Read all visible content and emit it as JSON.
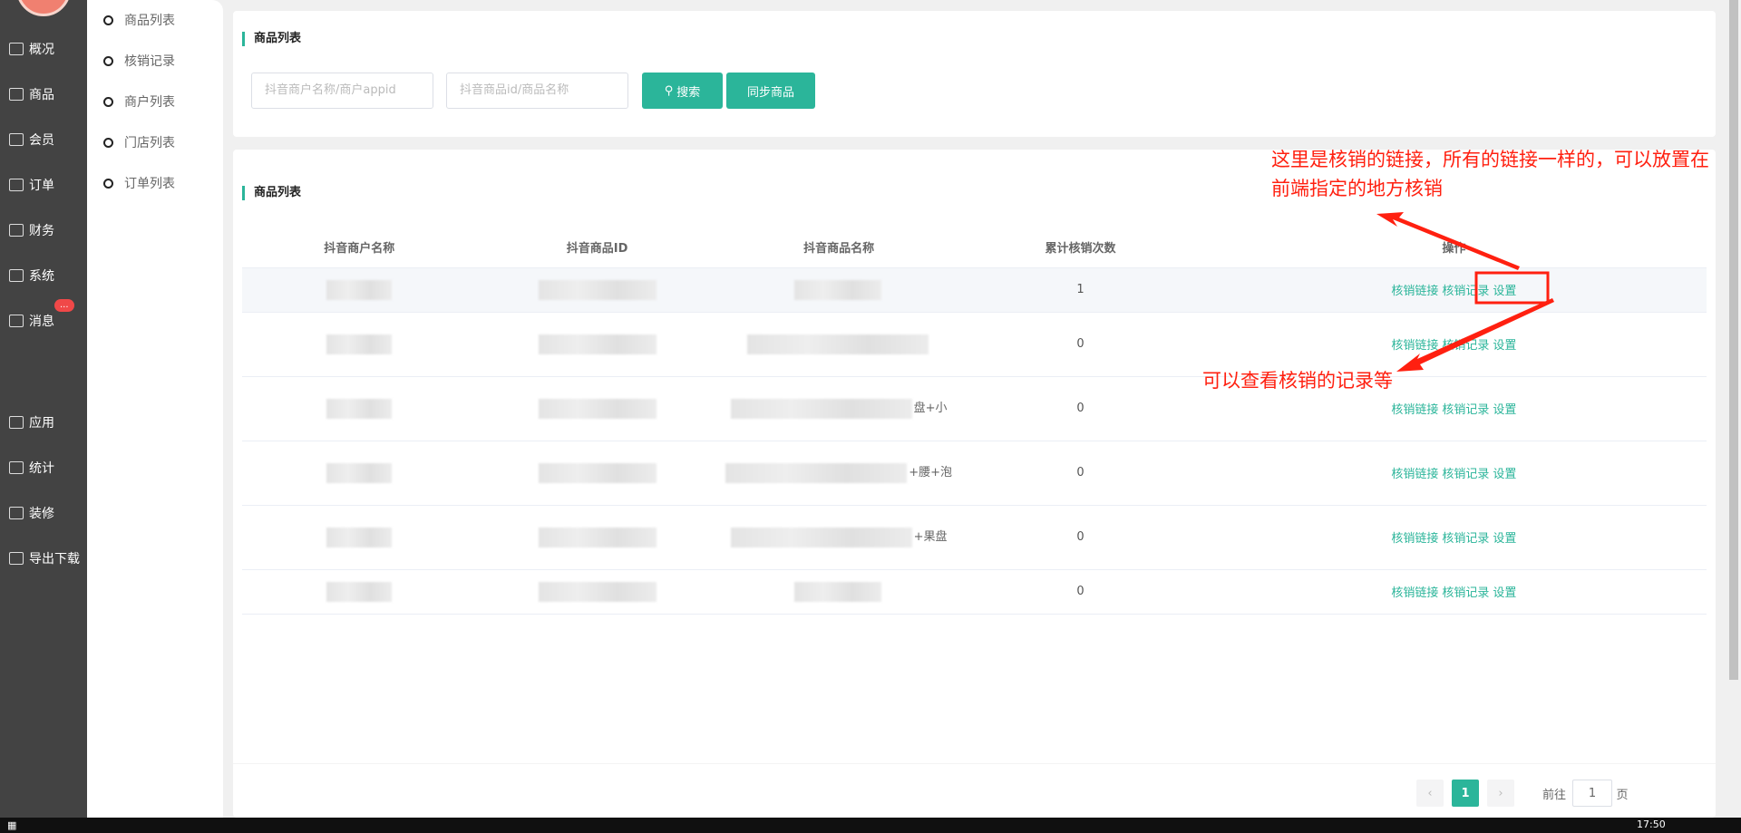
{
  "sidebar": {
    "items": [
      {
        "label": "概况",
        "icon": "chart-icon"
      },
      {
        "label": "商品",
        "icon": "bag-icon"
      },
      {
        "label": "会员",
        "icon": "users-icon"
      },
      {
        "label": "订单",
        "icon": "cart-icon"
      },
      {
        "label": "财务",
        "icon": "yen-icon"
      },
      {
        "label": "系统",
        "icon": "gear-icon"
      },
      {
        "label": "消息",
        "icon": "chat-icon"
      },
      {
        "label": "应用",
        "icon": "apps-icon"
      },
      {
        "label": "统计",
        "icon": "bar-chart-icon"
      },
      {
        "label": "装修",
        "icon": "paint-roller-icon"
      },
      {
        "label": "导出下载",
        "icon": "download-icon"
      }
    ],
    "badge": "..."
  },
  "submenu": {
    "items": [
      "商品列表",
      "核销记录",
      "商户列表",
      "门店列表",
      "订单列表"
    ]
  },
  "search": {
    "title": "商品列表",
    "merchant_placeholder": "抖音商户名称/商户appid",
    "product_placeholder": "抖音商品id/商品名称",
    "search_label": "搜索",
    "sync_label": "同步商品"
  },
  "table": {
    "title": "商品列表",
    "headers": [
      "抖音商户名称",
      "抖音商品ID",
      "抖音商品名称",
      "累计核销次数",
      "操作"
    ],
    "rows": [
      {
        "count": "1",
        "frag": ""
      },
      {
        "count": "0",
        "frag": ""
      },
      {
        "count": "0",
        "frag": "盘+小"
      },
      {
        "count": "0",
        "frag": "+腰+泡"
      },
      {
        "count": "0",
        "frag": "+果盘"
      },
      {
        "count": "0",
        "frag": ""
      }
    ],
    "actions": [
      "核销链接",
      "核销记录",
      "设置"
    ]
  },
  "pagination": {
    "current": "1",
    "goto_label": "前往",
    "goto_value": "1",
    "page_suffix": "页"
  },
  "annotations": {
    "top": "这里是核销的链接，所有的链接一样的，可以放置在前端指定的地方核销",
    "bottom": "可以查看核销的记录等",
    "color": "#ff2010"
  },
  "taskbar": {
    "time": "17:50"
  },
  "colors": {
    "accent": "#2bb59a",
    "sidebar": "#434343"
  }
}
